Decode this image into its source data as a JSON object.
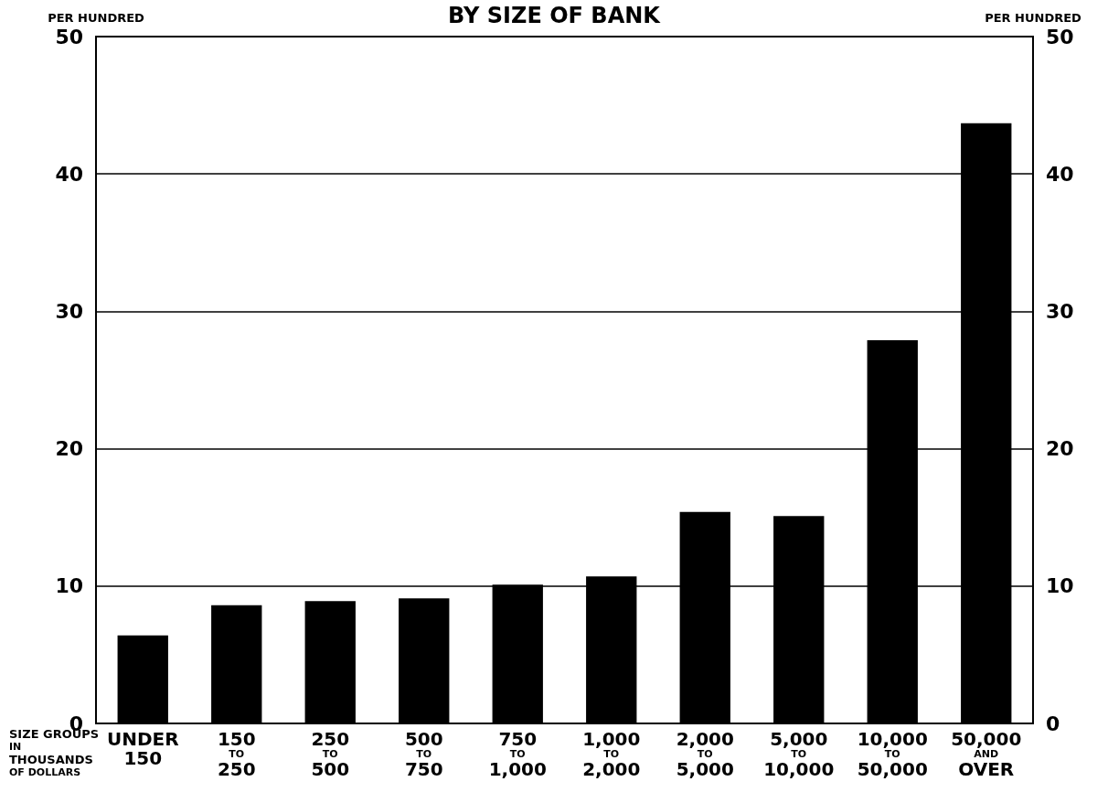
{
  "chart_data": {
    "type": "bar",
    "title": "BY SIZE OF BANK",
    "ylabel": "PER HUNDRED",
    "y2label": "PER HUNDRED",
    "xlabel": "SIZE GROUPS\nIN\nTHOUSANDS\nOF DOLLARS",
    "categories": [
      "UNDER\n150",
      "150\nTO\n250",
      "250\nTO\n500",
      "500\nTO\n750",
      "750\nTO\n1,000",
      "1,000\nTO\n2,000",
      "2,000\nTO\n5,000",
      "5,000\nTO\n10,000",
      "10,000\nTO\n50,000",
      "50,000\nAND\nOVER"
    ],
    "values": [
      6.4,
      8.6,
      8.9,
      9.1,
      10.1,
      10.7,
      15.4,
      15.1,
      27.9,
      43.7
    ],
    "color": "#000000",
    "ylim": [
      0,
      50
    ],
    "yticks": [
      0,
      10,
      20,
      30,
      40,
      50
    ],
    "y2lim": [
      0,
      50
    ],
    "y2ticks": [
      0,
      10,
      20,
      30,
      40,
      50
    ],
    "grid": "y"
  }
}
